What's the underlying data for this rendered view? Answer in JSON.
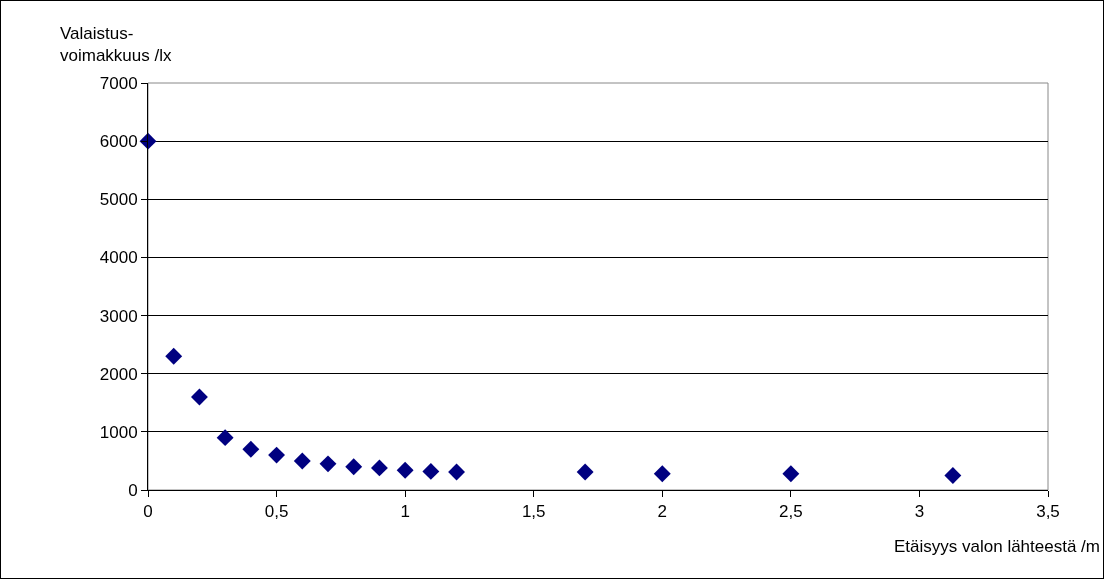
{
  "chart_data": {
    "type": "scatter",
    "xlabel": "Etäisyys valon lähteestä /m",
    "ylabel": "Valaistus-\nvoimakkuus /lx",
    "x": [
      0,
      0.1,
      0.2,
      0.3,
      0.4,
      0.5,
      0.6,
      0.7,
      0.8,
      0.9,
      1.0,
      1.1,
      1.2,
      1.7,
      2.0,
      2.5,
      3.13
    ],
    "series": [
      {
        "color": "#000080",
        "values": [
          6000,
          2300,
          1600,
          900,
          700,
          600,
          500,
          450,
          400,
          380,
          340,
          320,
          310,
          310,
          280,
          280,
          250
        ]
      }
    ],
    "xlim": [
      0,
      3.5
    ],
    "xticks": [
      0,
      {
        "value": 0.5,
        "label": "0,5"
      },
      1,
      {
        "value": 1.5,
        "label": "1,5"
      },
      2,
      {
        "value": 2.5,
        "label": "2,5"
      },
      3,
      {
        "value": 3.5,
        "label": "3,5"
      }
    ],
    "ylim": [
      0,
      7000
    ],
    "yticks": [
      0,
      1000,
      2000,
      3000,
      4000,
      5000,
      6000,
      7000
    ],
    "grid": "y",
    "marker": "diamond"
  }
}
